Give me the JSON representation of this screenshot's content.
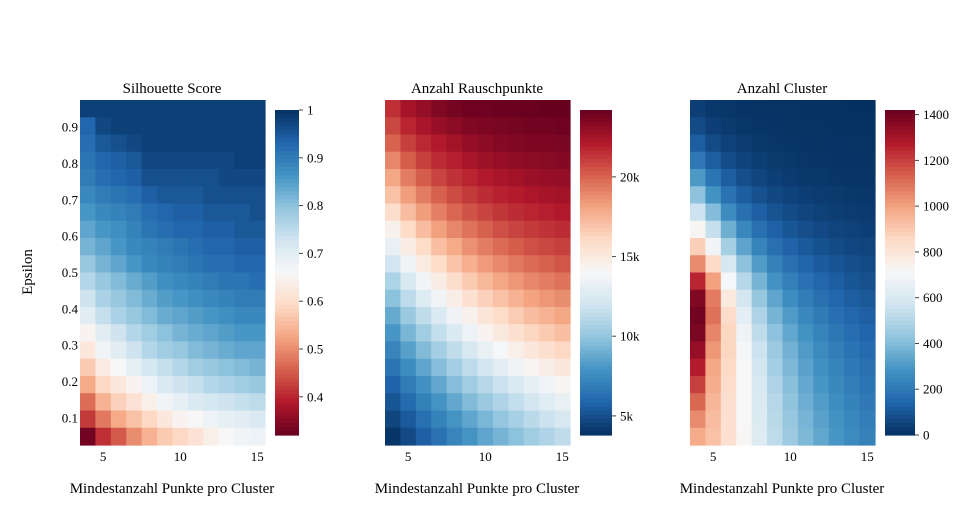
{
  "chart_data": [
    {
      "type": "heatmap",
      "title": "Silhouette Score",
      "xlabel": "Mindestanzahl Punkte pro Cluster",
      "ylabel": "Epsilon",
      "x": [
        4,
        5,
        6,
        7,
        8,
        9,
        10,
        11,
        12,
        13,
        14,
        15
      ],
      "y_range": [
        0.025,
        0.975
      ],
      "y_step": 0.05,
      "x_ticks": [
        5,
        10,
        15
      ],
      "y_ticks": [
        0.1,
        0.2,
        0.3,
        0.4,
        0.5,
        0.6,
        0.7,
        0.8,
        0.9
      ],
      "y_tick_labels": [
        "0.1",
        "0.2",
        "0.3",
        "0.4",
        "0.5",
        "0.6",
        "0.7",
        "0.8",
        "0.9"
      ],
      "colorscale": "RdBu",
      "zmin": 0.32,
      "zmax": 1.0,
      "colorbar_ticks": [
        0.4,
        0.5,
        0.6,
        0.7,
        0.8,
        0.9,
        1
      ],
      "colorbar_tick_labels": [
        "0.4",
        "0.5",
        "0.6",
        "0.7",
        "0.8",
        "0.9",
        "1"
      ],
      "z": [
        [
          0.98,
          0.98,
          0.98,
          0.98,
          0.98,
          0.98,
          0.98,
          0.98,
          0.98,
          0.98,
          0.98,
          0.98
        ],
        [
          0.93,
          0.97,
          0.98,
          0.98,
          0.98,
          0.98,
          0.98,
          0.98,
          0.98,
          0.98,
          0.98,
          0.98
        ],
        [
          0.92,
          0.95,
          0.96,
          0.97,
          0.98,
          0.98,
          0.98,
          0.98,
          0.98,
          0.98,
          0.98,
          0.98
        ],
        [
          0.91,
          0.93,
          0.94,
          0.95,
          0.97,
          0.97,
          0.97,
          0.97,
          0.97,
          0.97,
          0.98,
          0.98
        ],
        [
          0.9,
          0.92,
          0.93,
          0.94,
          0.96,
          0.96,
          0.96,
          0.96,
          0.96,
          0.97,
          0.97,
          0.97
        ],
        [
          0.88,
          0.9,
          0.91,
          0.92,
          0.94,
          0.95,
          0.95,
          0.95,
          0.96,
          0.96,
          0.96,
          0.96
        ],
        [
          0.86,
          0.88,
          0.89,
          0.9,
          0.92,
          0.93,
          0.94,
          0.94,
          0.95,
          0.95,
          0.95,
          0.96
        ],
        [
          0.84,
          0.86,
          0.87,
          0.89,
          0.91,
          0.92,
          0.93,
          0.93,
          0.94,
          0.94,
          0.95,
          0.95
        ],
        [
          0.82,
          0.84,
          0.86,
          0.88,
          0.89,
          0.9,
          0.91,
          0.92,
          0.93,
          0.93,
          0.94,
          0.94
        ],
        [
          0.79,
          0.82,
          0.84,
          0.86,
          0.88,
          0.89,
          0.9,
          0.91,
          0.92,
          0.92,
          0.93,
          0.93
        ],
        [
          0.76,
          0.79,
          0.81,
          0.83,
          0.85,
          0.87,
          0.88,
          0.89,
          0.9,
          0.91,
          0.91,
          0.92
        ],
        [
          0.73,
          0.77,
          0.79,
          0.81,
          0.83,
          0.85,
          0.86,
          0.87,
          0.88,
          0.89,
          0.9,
          0.9
        ],
        [
          0.7,
          0.74,
          0.77,
          0.79,
          0.81,
          0.83,
          0.84,
          0.85,
          0.86,
          0.87,
          0.88,
          0.88
        ],
        [
          0.65,
          0.7,
          0.73,
          0.76,
          0.78,
          0.8,
          0.82,
          0.83,
          0.84,
          0.85,
          0.86,
          0.86
        ],
        [
          0.62,
          0.67,
          0.7,
          0.73,
          0.76,
          0.78,
          0.79,
          0.81,
          0.82,
          0.83,
          0.84,
          0.84
        ],
        [
          0.57,
          0.63,
          0.66,
          0.69,
          0.72,
          0.74,
          0.76,
          0.78,
          0.79,
          0.8,
          0.81,
          0.82
        ],
        [
          0.53,
          0.59,
          0.62,
          0.65,
          0.68,
          0.71,
          0.73,
          0.74,
          0.76,
          0.77,
          0.78,
          0.79
        ],
        [
          0.47,
          0.54,
          0.58,
          0.61,
          0.64,
          0.67,
          0.69,
          0.71,
          0.72,
          0.73,
          0.74,
          0.75
        ],
        [
          0.42,
          0.48,
          0.53,
          0.56,
          0.59,
          0.62,
          0.65,
          0.66,
          0.68,
          0.69,
          0.7,
          0.71
        ],
        [
          0.33,
          0.41,
          0.45,
          0.5,
          0.54,
          0.57,
          0.59,
          0.61,
          0.64,
          0.66,
          0.67,
          0.68
        ]
      ]
    },
    {
      "type": "heatmap",
      "title": "Anzahl Rauschpunkte",
      "xlabel": "Mindestanzahl Punkte pro Cluster",
      "x": [
        4,
        5,
        6,
        7,
        8,
        9,
        10,
        11,
        12,
        13,
        14,
        15
      ],
      "y_range": [
        0.025,
        0.975
      ],
      "y_step": 0.05,
      "x_ticks": [
        5,
        10,
        15
      ],
      "colorscale": "RdBu_reversed",
      "zmin": 3800,
      "zmax": 24200,
      "colorbar_ticks": [
        5000,
        10000,
        15000,
        20000
      ],
      "colorbar_tick_labels": [
        "5k",
        "10k",
        "15k",
        "20k"
      ],
      "z": [
        [
          21500,
          22500,
          23000,
          23500,
          23800,
          24000,
          24000,
          24100,
          24100,
          24100,
          24200,
          24200
        ],
        [
          20800,
          21800,
          22400,
          22900,
          23200,
          23500,
          23600,
          23700,
          23800,
          23900,
          23900,
          24000
        ],
        [
          20000,
          21000,
          21700,
          22200,
          22600,
          23000,
          23200,
          23400,
          23500,
          23600,
          23600,
          23700
        ],
        [
          19000,
          20200,
          21000,
          21600,
          22000,
          22400,
          22700,
          22900,
          23100,
          23200,
          23300,
          23400
        ],
        [
          18000,
          19300,
          20200,
          20900,
          21400,
          21800,
          22200,
          22400,
          22600,
          22800,
          22900,
          23000
        ],
        [
          17000,
          18300,
          19300,
          20100,
          20700,
          21200,
          21600,
          21900,
          22100,
          22300,
          22500,
          22600
        ],
        [
          15800,
          17200,
          18300,
          19200,
          19900,
          20500,
          20900,
          21300,
          21600,
          21800,
          22000,
          22200
        ],
        [
          14500,
          16000,
          17200,
          18200,
          19000,
          19600,
          20100,
          20600,
          20900,
          21200,
          21400,
          21600
        ],
        [
          13200,
          14800,
          16000,
          17100,
          17900,
          18700,
          19300,
          19800,
          20200,
          20600,
          20800,
          21000
        ],
        [
          12000,
          13600,
          14900,
          16000,
          16900,
          17700,
          18400,
          18900,
          19400,
          19800,
          20100,
          20400
        ],
        [
          10800,
          12400,
          13700,
          14800,
          15800,
          16700,
          17400,
          18000,
          18500,
          19000,
          19300,
          19600
        ],
        [
          9800,
          11300,
          12600,
          13700,
          14700,
          15600,
          16400,
          17000,
          17600,
          18100,
          18500,
          18800
        ],
        [
          8800,
          10200,
          11400,
          12500,
          13600,
          14500,
          15300,
          16000,
          16600,
          17200,
          17600,
          18000
        ],
        [
          8000,
          9300,
          10400,
          11500,
          12500,
          13400,
          14300,
          15000,
          15600,
          16200,
          16700,
          17100
        ],
        [
          7200,
          8400,
          9500,
          10500,
          11400,
          12300,
          13200,
          13900,
          14600,
          15200,
          15700,
          16100
        ],
        [
          6500,
          7600,
          8600,
          9600,
          10500,
          11300,
          12100,
          12900,
          13600,
          14200,
          14700,
          15200
        ],
        [
          5800,
          6800,
          7800,
          8700,
          9600,
          10400,
          11100,
          11800,
          12500,
          13100,
          13700,
          14200
        ],
        [
          5200,
          6100,
          7000,
          7900,
          8700,
          9500,
          10200,
          10900,
          11500,
          12100,
          12700,
          13200
        ],
        [
          4600,
          5400,
          6300,
          7100,
          7900,
          8600,
          9300,
          10000,
          10600,
          11200,
          11800,
          12300
        ],
        [
          4000,
          4800,
          5600,
          6400,
          7200,
          7900,
          8600,
          9200,
          9800,
          10400,
          10900,
          11400
        ]
      ]
    },
    {
      "type": "heatmap",
      "title": "Anzahl Cluster",
      "xlabel": "Mindestanzahl Punkte pro Cluster",
      "x": [
        4,
        5,
        6,
        7,
        8,
        9,
        10,
        11,
        12,
        13,
        14,
        15
      ],
      "y_range": [
        0.025,
        0.975
      ],
      "y_step": 0.05,
      "x_ticks": [
        5,
        10,
        15
      ],
      "colorscale": "RdBu_reversed",
      "zmin": 0,
      "zmax": 1420,
      "colorbar_ticks": [
        0,
        200,
        400,
        600,
        800,
        1000,
        1200,
        1400
      ],
      "colorbar_tick_labels": [
        "0",
        "200",
        "400",
        "600",
        "800",
        "1000",
        "1200",
        "1400"
      ],
      "z": [
        [
          40,
          20,
          15,
          10,
          8,
          6,
          5,
          4,
          3,
          3,
          2,
          2
        ],
        [
          70,
          40,
          25,
          15,
          12,
          10,
          8,
          6,
          5,
          4,
          4,
          3
        ],
        [
          120,
          70,
          45,
          30,
          20,
          15,
          12,
          10,
          8,
          7,
          6,
          5
        ],
        [
          200,
          120,
          75,
          50,
          35,
          25,
          20,
          16,
          13,
          11,
          9,
          8
        ],
        [
          300,
          190,
          120,
          80,
          55,
          40,
          30,
          24,
          20,
          17,
          14,
          12
        ],
        [
          420,
          280,
          180,
          120,
          85,
          62,
          48,
          38,
          30,
          25,
          21,
          18
        ],
        [
          560,
          400,
          260,
          175,
          125,
          90,
          70,
          55,
          44,
          36,
          30,
          26
        ],
        [
          720,
          540,
          360,
          245,
          175,
          130,
          100,
          80,
          64,
          52,
          44,
          38
        ],
        [
          880,
          690,
          470,
          330,
          235,
          175,
          135,
          108,
          88,
          72,
          60,
          52
        ],
        [
          1050,
          850,
          590,
          420,
          305,
          228,
          175,
          140,
          115,
          95,
          80,
          68
        ],
        [
          1250,
          1000,
          700,
          510,
          375,
          282,
          220,
          176,
          145,
          120,
          101,
          86
        ],
        [
          1370,
          1080,
          780,
          580,
          435,
          335,
          265,
          212,
          175,
          145,
          122,
          105
        ],
        [
          1400,
          1100,
          840,
          640,
          490,
          380,
          305,
          248,
          205,
          171,
          145,
          125
        ],
        [
          1380,
          1060,
          860,
          680,
          530,
          420,
          340,
          280,
          233,
          195,
          166,
          143
        ],
        [
          1330,
          1020,
          860,
          700,
          560,
          450,
          368,
          305,
          256,
          216,
          185,
          160
        ],
        [
          1270,
          990,
          850,
          710,
          580,
          472,
          390,
          326,
          275,
          234,
          201,
          175
        ],
        [
          1200,
          970,
          840,
          710,
          590,
          490,
          410,
          345,
          293,
          250,
          216,
          189
        ],
        [
          1120,
          950,
          830,
          710,
          600,
          505,
          425,
          362,
          310,
          266,
          231,
          203
        ],
        [
          1050,
          930,
          820,
          710,
          610,
          515,
          440,
          377,
          324,
          280,
          245,
          216
        ],
        [
          980,
          920,
          820,
          715,
          615,
          525,
          450,
          390,
          337,
          292,
          257,
          228
        ]
      ]
    }
  ]
}
